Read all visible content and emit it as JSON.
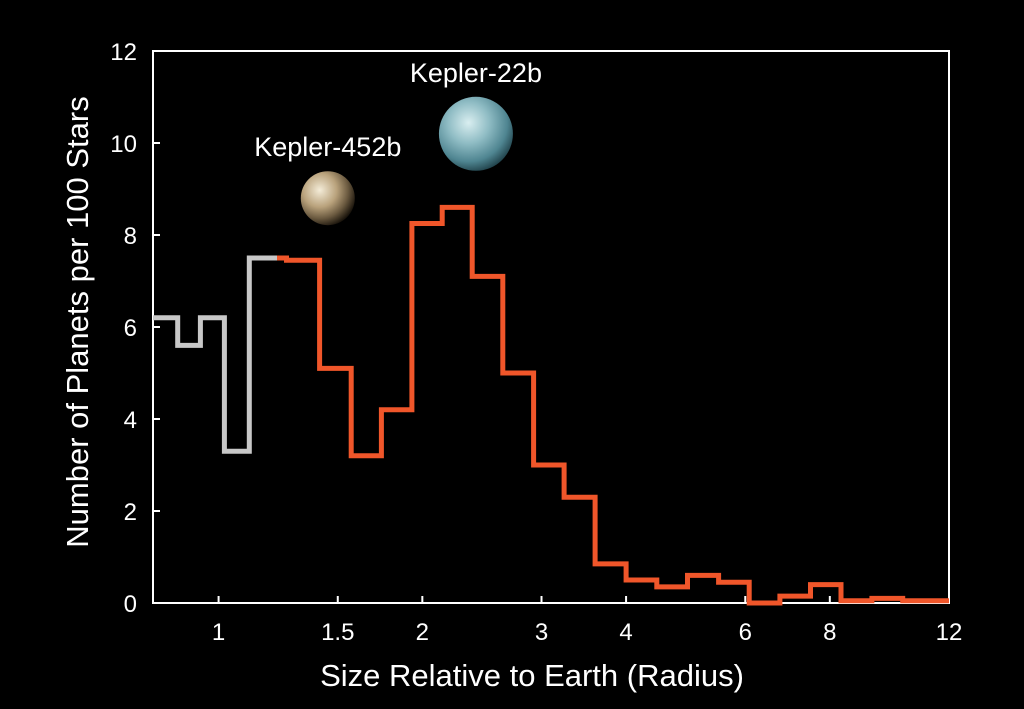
{
  "chart_data": {
    "type": "line",
    "subtype": "step-histogram",
    "xlabel": "Size Relative to Earth (Radius)",
    "ylabel": "Number of Planets per 100 Stars",
    "x_scale": "log",
    "xlim": [
      0.8,
      12
    ],
    "ylim": [
      0,
      12
    ],
    "x_ticks": [
      {
        "value": 1,
        "label": "1"
      },
      {
        "value": 1.5,
        "label": "1.5"
      },
      {
        "value": 2,
        "label": "2"
      },
      {
        "value": 3,
        "label": "3"
      },
      {
        "value": 4,
        "label": "4"
      },
      {
        "value": 6,
        "label": "6"
      },
      {
        "value": 8,
        "label": "8"
      },
      {
        "value": 12,
        "label": "12"
      }
    ],
    "y_ticks": [
      {
        "value": 0,
        "label": "0"
      },
      {
        "value": 2,
        "label": "2"
      },
      {
        "value": 4,
        "label": "4"
      },
      {
        "value": 6,
        "label": "6"
      },
      {
        "value": 8,
        "label": "8"
      },
      {
        "value": 10,
        "label": "10"
      },
      {
        "value": 12,
        "label": "12"
      }
    ],
    "grid": false,
    "series": [
      {
        "color": "#c8c8c8",
        "bins": [
          {
            "x0": 0.8,
            "x1": 0.87,
            "y": 6.2
          },
          {
            "x0": 0.87,
            "x1": 0.94,
            "y": 5.6
          },
          {
            "x0": 0.94,
            "x1": 1.02,
            "y": 6.2
          },
          {
            "x0": 1.02,
            "x1": 1.11,
            "y": 3.3
          },
          {
            "x0": 1.11,
            "x1": 1.22,
            "y": 7.5
          }
        ]
      },
      {
        "color": "#f0562a",
        "bins": [
          {
            "x0": 1.22,
            "x1": 1.26,
            "y": 7.5
          },
          {
            "x0": 1.26,
            "x1": 1.41,
            "y": 7.45
          },
          {
            "x0": 1.41,
            "x1": 1.57,
            "y": 5.1
          },
          {
            "x0": 1.57,
            "x1": 1.74,
            "y": 3.2
          },
          {
            "x0": 1.74,
            "x1": 1.93,
            "y": 4.2
          },
          {
            "x0": 1.93,
            "x1": 2.14,
            "y": 8.25
          },
          {
            "x0": 2.14,
            "x1": 2.37,
            "y": 8.6
          },
          {
            "x0": 2.37,
            "x1": 2.63,
            "y": 7.1
          },
          {
            "x0": 2.63,
            "x1": 2.92,
            "y": 5.0
          },
          {
            "x0": 2.92,
            "x1": 3.24,
            "y": 3.0
          },
          {
            "x0": 3.24,
            "x1": 3.6,
            "y": 2.3
          },
          {
            "x0": 3.6,
            "x1": 4.0,
            "y": 0.85
          },
          {
            "x0": 4.0,
            "x1": 4.44,
            "y": 0.5
          },
          {
            "x0": 4.44,
            "x1": 4.93,
            "y": 0.35
          },
          {
            "x0": 4.93,
            "x1": 5.48,
            "y": 0.6
          },
          {
            "x0": 5.48,
            "x1": 6.08,
            "y": 0.45
          },
          {
            "x0": 6.08,
            "x1": 6.75,
            "y": 0.0
          },
          {
            "x0": 6.75,
            "x1": 7.49,
            "y": 0.15
          },
          {
            "x0": 7.49,
            "x1": 8.31,
            "y": 0.4
          },
          {
            "x0": 8.31,
            "x1": 9.23,
            "y": 0.05
          },
          {
            "x0": 9.23,
            "x1": 10.25,
            "y": 0.1
          },
          {
            "x0": 10.25,
            "x1": 12.0,
            "y": 0.05
          }
        ]
      }
    ],
    "annotations": [
      {
        "text": "Kepler-452b",
        "planet_x": 1.45,
        "planet_y": 8.8,
        "kind": "earthlike-planet-icon"
      },
      {
        "text": "Kepler-22b",
        "planet_x": 2.4,
        "planet_y": 10.2,
        "kind": "ocean-planet-icon"
      }
    ]
  }
}
